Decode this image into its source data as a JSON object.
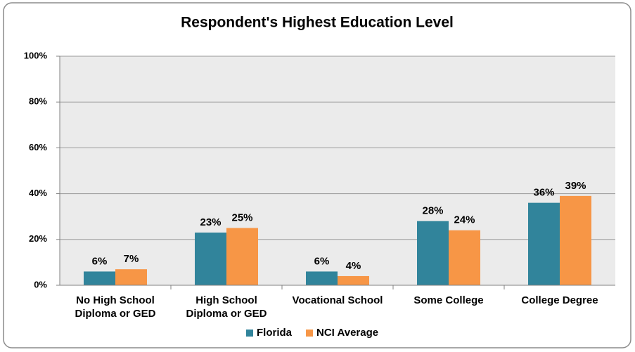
{
  "chart_data": {
    "type": "bar",
    "title": "Respondent's Highest Education Level",
    "categories": [
      "No High School Diploma or GED",
      "High School Diploma or GED",
      "Vocational School",
      "Some College",
      "College Degree"
    ],
    "series": [
      {
        "name": "Florida",
        "color": "#31849b",
        "values": [
          6,
          23,
          6,
          28,
          36
        ],
        "value_labels": [
          "6%",
          "23%",
          "6%",
          "28%",
          "36%"
        ]
      },
      {
        "name": "NCI Average",
        "color": "#f79646",
        "values": [
          7,
          25,
          4,
          24,
          39
        ],
        "value_labels": [
          "7%",
          "25%",
          "4%",
          "24%",
          "39%"
        ]
      }
    ],
    "ylim": [
      0,
      100
    ],
    "yticks": [
      {
        "value": 0,
        "label": "0%"
      },
      {
        "value": 20,
        "label": "20%"
      },
      {
        "value": 40,
        "label": "40%"
      },
      {
        "value": 60,
        "label": "60%"
      },
      {
        "value": 80,
        "label": "80%"
      },
      {
        "value": 100,
        "label": "100%"
      }
    ],
    "grid": true,
    "legend": "bottom"
  }
}
